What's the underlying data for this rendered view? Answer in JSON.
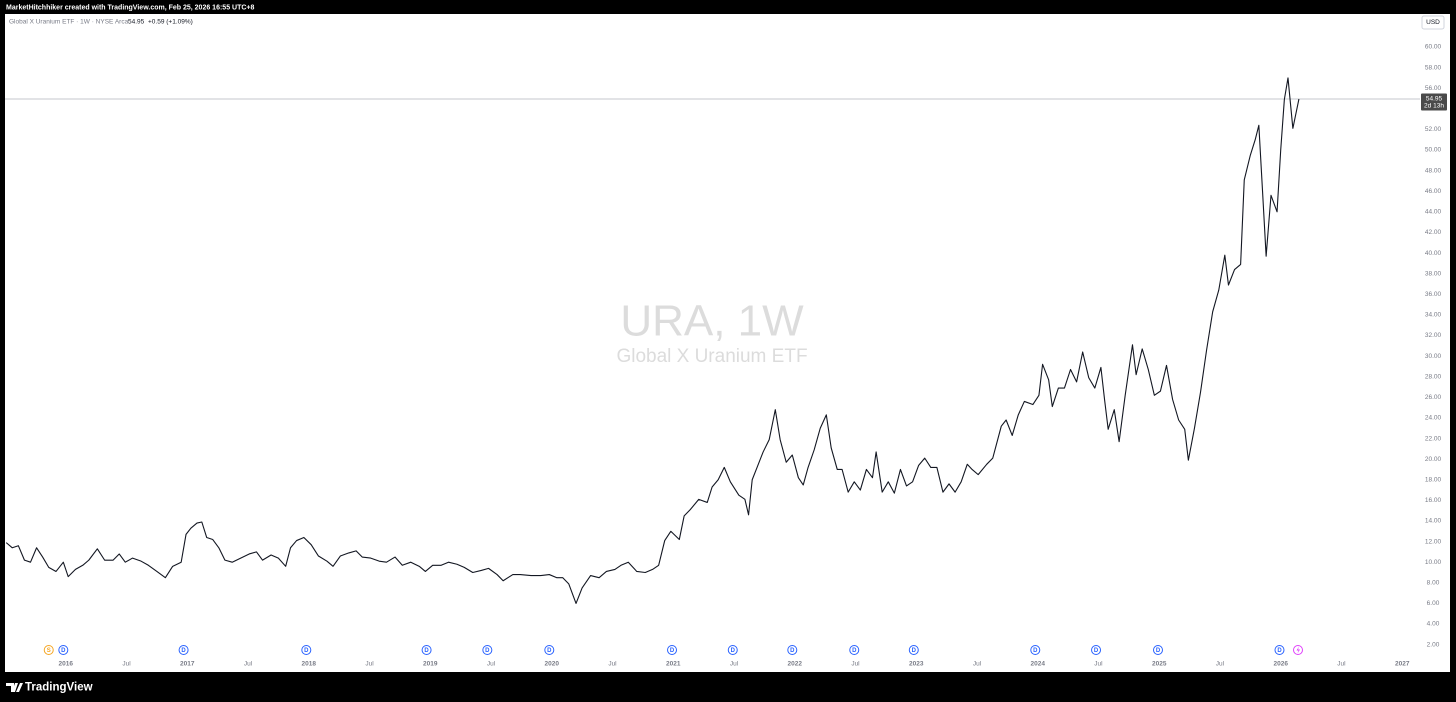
{
  "chart_data": {
    "type": "line",
    "credit": "MarketHitchhiker created with TradingView.com, Feb 25, 2026 16:55 UTC+8",
    "title": "Global X Uranium ETF · 1W · NYSE Arca",
    "last_price": 54.95,
    "change_label": "+0.59 (+1.09%)",
    "countdown": "2d 13h",
    "currency": "USD",
    "watermark": "URA, 1W",
    "watermark_subtitle": "Global X Uranium ETF",
    "brand": "TradingView",
    "color": "#131722",
    "grid": false,
    "x": [
      2015.51,
      2015.56,
      2015.61,
      2015.66,
      2015.71,
      2015.76,
      2015.81,
      2015.86,
      2015.92,
      2015.98,
      2016.02,
      2016.08,
      2016.14,
      2016.19,
      2016.26,
      2016.32,
      2016.39,
      2016.44,
      2016.49,
      2016.55,
      2016.62,
      2016.68,
      2016.75,
      2016.82,
      2016.88,
      2016.95,
      2016.99,
      2017.03,
      2017.08,
      2017.12,
      2017.16,
      2017.21,
      2017.26,
      2017.31,
      2017.37,
      2017.44,
      2017.51,
      2017.57,
      2017.62,
      2017.69,
      2017.75,
      2017.81,
      2017.85,
      2017.9,
      2017.96,
      2018.02,
      2018.08,
      2018.15,
      2018.2,
      2018.26,
      2018.33,
      2018.39,
      2018.44,
      2018.51,
      2018.58,
      2018.64,
      2018.71,
      2018.77,
      2018.84,
      2018.91,
      2018.96,
      2019.02,
      2019.09,
      2019.15,
      2019.22,
      2019.28,
      2019.35,
      2019.42,
      2019.48,
      2019.55,
      2019.6,
      2019.68,
      2019.74,
      2019.83,
      2019.91,
      2019.98,
      2020.04,
      2020.09,
      2020.14,
      2020.2,
      2020.25,
      2020.32,
      2020.39,
      2020.45,
      2020.52,
      2020.57,
      2020.63,
      2020.7,
      2020.77,
      2020.83,
      2020.88,
      2020.93,
      2020.98,
      2021.05,
      2021.09,
      2021.14,
      2021.21,
      2021.28,
      2021.32,
      2021.37,
      2021.42,
      2021.47,
      2021.54,
      2021.59,
      2021.62,
      2021.65,
      2021.69,
      2021.74,
      2021.79,
      2021.84,
      2021.88,
      2021.93,
      2021.98,
      2022.03,
      2022.07,
      2022.11,
      2022.16,
      2022.21,
      2022.26,
      2022.3,
      2022.35,
      2022.39,
      2022.44,
      2022.49,
      2022.54,
      2022.59,
      2022.64,
      2022.67,
      2022.72,
      2022.77,
      2022.82,
      2022.87,
      2022.92,
      2022.97,
      2023.02,
      2023.07,
      2023.12,
      2023.17,
      2023.22,
      2023.27,
      2023.32,
      2023.37,
      2023.42,
      2023.46,
      2023.51,
      2023.58,
      2023.63,
      2023.7,
      2023.74,
      2023.79,
      2023.84,
      2023.89,
      2023.96,
      2024.01,
      2024.04,
      2024.09,
      2024.12,
      2024.17,
      2024.22,
      2024.27,
      2024.32,
      2024.37,
      2024.42,
      2024.47,
      2024.52,
      2024.55,
      2024.58,
      2024.63,
      2024.67,
      2024.72,
      2024.78,
      2024.81,
      2024.86,
      2024.91,
      2024.96,
      2025.01,
      2025.06,
      2025.11,
      2025.16,
      2025.21,
      2025.24,
      2025.29,
      2025.34,
      2025.39,
      2025.44,
      2025.49,
      2025.54,
      2025.57,
      2025.62,
      2025.67,
      2025.7,
      2025.75,
      2025.79,
      2025.82,
      2025.85,
      2025.88,
      2025.92,
      2025.97,
      2026.0,
      2026.03,
      2026.06,
      2026.1,
      2026.15
    ],
    "values": [
      11.9,
      11.4,
      11.6,
      10.2,
      10.0,
      11.4,
      10.5,
      9.5,
      9.1,
      10.0,
      8.6,
      9.3,
      9.7,
      10.2,
      11.3,
      10.2,
      10.2,
      10.8,
      10.0,
      10.4,
      10.1,
      9.7,
      9.1,
      8.5,
      9.6,
      10.0,
      12.7,
      13.3,
      13.8,
      13.9,
      12.4,
      12.2,
      11.4,
      10.2,
      10.0,
      10.4,
      10.8,
      11.0,
      10.2,
      10.7,
      10.4,
      9.6,
      11.4,
      12.1,
      12.4,
      11.7,
      10.6,
      10.1,
      9.6,
      10.6,
      10.9,
      11.1,
      10.5,
      10.4,
      10.1,
      10.0,
      10.5,
      9.7,
      10.0,
      9.6,
      9.1,
      9.7,
      9.7,
      10.0,
      9.8,
      9.5,
      9.0,
      9.2,
      9.4,
      8.8,
      8.2,
      8.8,
      8.8,
      8.7,
      8.7,
      8.8,
      8.5,
      8.5,
      7.9,
      6.0,
      7.5,
      8.7,
      8.5,
      9.1,
      9.3,
      9.7,
      10.0,
      9.1,
      9.0,
      9.3,
      9.7,
      12.1,
      13.0,
      12.2,
      14.5,
      15.1,
      16.1,
      15.8,
      17.3,
      18.0,
      19.2,
      17.8,
      16.5,
      16.1,
      14.6,
      18.0,
      19.2,
      20.7,
      21.9,
      24.8,
      21.9,
      19.7,
      20.4,
      18.2,
      17.5,
      19.2,
      20.9,
      23.0,
      24.3,
      21.1,
      19.0,
      19.0,
      16.8,
      17.8,
      17.0,
      19.0,
      18.2,
      20.7,
      16.8,
      17.8,
      16.7,
      19.0,
      17.4,
      17.8,
      19.4,
      20.1,
      19.2,
      19.2,
      16.8,
      17.6,
      16.8,
      17.8,
      19.5,
      19.0,
      18.5,
      19.5,
      20.1,
      23.2,
      23.8,
      22.3,
      24.3,
      25.6,
      25.3,
      26.2,
      29.2,
      27.7,
      25.1,
      26.9,
      26.9,
      28.7,
      27.5,
      30.4,
      27.9,
      26.9,
      28.9,
      25.8,
      22.9,
      24.8,
      21.7,
      26.2,
      31.1,
      28.2,
      30.7,
      28.7,
      26.2,
      26.6,
      29.1,
      25.8,
      23.8,
      22.9,
      19.9,
      23.0,
      26.5,
      30.6,
      34.3,
      36.4,
      39.8,
      36.9,
      38.4,
      38.9,
      47.1,
      49.5,
      51.0,
      52.4,
      46.1,
      39.7,
      45.6,
      44.0,
      50.0,
      54.9,
      57.0,
      52.1,
      54.95
    ],
    "xlim": [
      2015.5,
      2027.13
    ],
    "xticks": [
      2016,
      {
        "value": 2016.5,
        "label": "Jul"
      },
      2017,
      {
        "value": 2017.5,
        "label": "Jul"
      },
      2018,
      {
        "value": 2018.5,
        "label": "Jul"
      },
      2019,
      {
        "value": 2019.5,
        "label": "Jul"
      },
      2020,
      {
        "value": 2020.5,
        "label": "Jul"
      },
      2021,
      {
        "value": 2021.5,
        "label": "Jul"
      },
      2022,
      {
        "value": 2022.5,
        "label": "Jul"
      },
      2023,
      {
        "value": 2023.5,
        "label": "Jul"
      },
      2024,
      {
        "value": 2024.5,
        "label": "Jul"
      },
      2025,
      {
        "value": 2025.5,
        "label": "Jul"
      },
      2026,
      {
        "value": 2026.5,
        "label": "Jul"
      },
      2027
    ],
    "ylim": [
      0.8,
      63.2
    ],
    "yticks": [
      {
        "value": 2,
        "label": "2.00"
      },
      {
        "value": 4,
        "label": "4.00"
      },
      {
        "value": 6,
        "label": "6.00"
      },
      {
        "value": 8,
        "label": "8.00"
      },
      {
        "value": 10,
        "label": "10.00"
      },
      {
        "value": 12,
        "label": "12.00"
      },
      {
        "value": 14,
        "label": "14.00"
      },
      {
        "value": 16,
        "label": "16.00"
      },
      {
        "value": 18,
        "label": "18.00"
      },
      {
        "value": 20,
        "label": "20.00"
      },
      {
        "value": 22,
        "label": "22.00"
      },
      {
        "value": 24,
        "label": "24.00"
      },
      {
        "value": 26,
        "label": "26.00"
      },
      {
        "value": 28,
        "label": "28.00"
      },
      {
        "value": 30,
        "label": "30.00"
      },
      {
        "value": 32,
        "label": "32.00"
      },
      {
        "value": 34,
        "label": "34.00"
      },
      {
        "value": 36,
        "label": "36.00"
      },
      {
        "value": 38,
        "label": "38.00"
      },
      {
        "value": 40,
        "label": "40.00"
      },
      {
        "value": 42,
        "label": "42.00"
      },
      {
        "value": 44,
        "label": "44.00"
      },
      {
        "value": 46,
        "label": "46.00"
      },
      {
        "value": 48,
        "label": "48.00"
      },
      {
        "value": 50,
        "label": "50.00"
      },
      {
        "value": 52,
        "label": "52.00"
      },
      {
        "value": 54,
        "label": "54.00"
      },
      {
        "value": 56,
        "label": "56.00"
      },
      {
        "value": 58,
        "label": "58.00"
      },
      {
        "value": 60,
        "label": "60.00"
      }
    ],
    "events": [
      {
        "label": "S",
        "x": 2015.86,
        "color": "#f5a623"
      },
      {
        "label": "D",
        "x": 2015.98,
        "color": "#2962ff"
      },
      {
        "label": "D",
        "x": 2016.97,
        "color": "#2962ff"
      },
      {
        "label": "D",
        "x": 2017.98,
        "color": "#2962ff"
      },
      {
        "label": "D",
        "x": 2018.97,
        "color": "#2962ff"
      },
      {
        "label": "D",
        "x": 2019.47,
        "color": "#2962ff"
      },
      {
        "label": "D",
        "x": 2019.98,
        "color": "#2962ff"
      },
      {
        "label": "D",
        "x": 2020.99,
        "color": "#2962ff"
      },
      {
        "label": "D",
        "x": 2021.49,
        "color": "#2962ff"
      },
      {
        "label": "D",
        "x": 2021.98,
        "color": "#2962ff"
      },
      {
        "label": "D",
        "x": 2022.49,
        "color": "#2962ff"
      },
      {
        "label": "D",
        "x": 2022.98,
        "color": "#2962ff"
      },
      {
        "label": "D",
        "x": 2023.98,
        "color": "#2962ff"
      },
      {
        "label": "D",
        "x": 2024.48,
        "color": "#2962ff"
      },
      {
        "label": "D",
        "x": 2024.99,
        "color": "#2962ff"
      },
      {
        "label": "D",
        "x": 2025.99,
        "color": "#2962ff"
      }
    ]
  }
}
